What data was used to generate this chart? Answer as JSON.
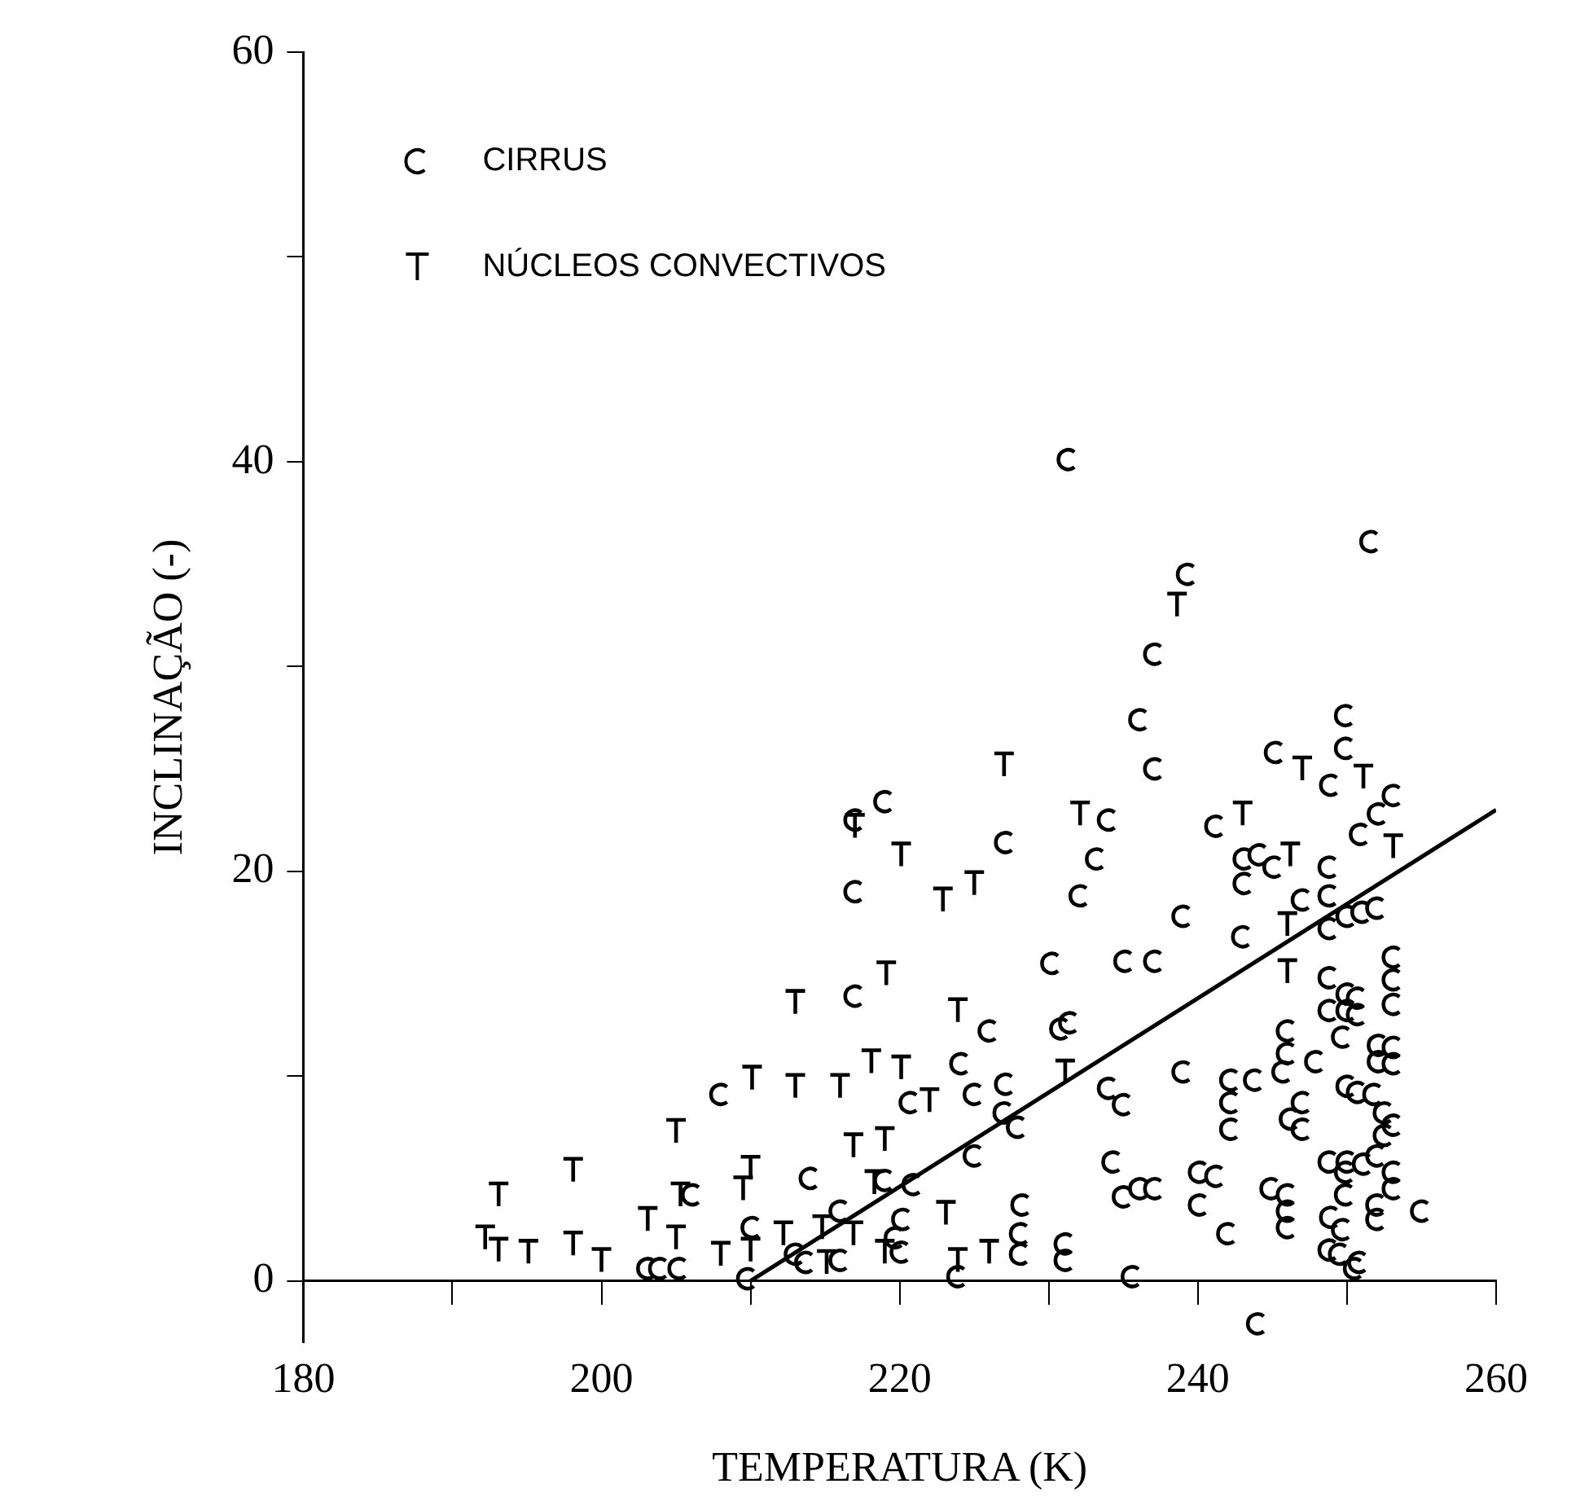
{
  "chart_data": {
    "type": "scatter",
    "xlabel": "TEMPERATURA (K)",
    "ylabel": "INCLINAÇÃO (-)",
    "xlim": [
      180,
      260
    ],
    "xticks": [
      180,
      {
        "value": 190,
        "label": null
      },
      200,
      {
        "value": 210,
        "label": null
      },
      220,
      {
        "value": 230,
        "label": null
      },
      240,
      {
        "value": 250,
        "label": null
      },
      260
    ],
    "ylim": [
      -3,
      60
    ],
    "yticks": [
      0,
      {
        "value": 10,
        "label": null
      },
      20,
      {
        "value": 30,
        "label": null
      },
      40,
      {
        "value": 50,
        "label": null
      },
      60
    ],
    "grid": false,
    "legend": "top left",
    "series": [
      {
        "name": "CIRRUS",
        "color": "#000000",
        "x": [
          208.0,
          206.1,
          210.1,
          209.8,
          203.1,
          203.9,
          205.2,
          219.0,
          217.0,
          217.0,
          227.1,
          234.0,
          233.2,
          232.1,
          230.2,
          235.1,
          237.1,
          236.1,
          217.0,
          226.0,
          231.4,
          230.8,
          224.1,
          225.0,
          227.1,
          227.0,
          227.9,
          234.0,
          235.0,
          234.3,
          235.0,
          236.1,
          225.0,
          214.0,
          219.0,
          220.9,
          220.2,
          216.0,
          219.7,
          220.1,
          228.2,
          228.1,
          228.1,
          231.1,
          231.1,
          216.0,
          213.7,
          213.0,
          223.9,
          235.6,
          220.7,
          237.1,
          237.1,
          245.2,
          249.9,
          249.9,
          248.9,
          241.2,
          243.1,
          244.1,
          243.1,
          245.1,
          239.0,
          243.0,
          247.0,
          248.8,
          248.8,
          248.8,
          248.8,
          248.8,
          246.0,
          246.0,
          247.9,
          239.0,
          242.2,
          242.2,
          242.2,
          243.8,
          245.7,
          246.2,
          247.0,
          247.0,
          240.1,
          241.2,
          240.1,
          242.0,
          244.9,
          246.0,
          246.0,
          246.0,
          237.1,
          248.8,
          248.9,
          248.8,
          250.5,
          244.0,
          249.9,
          249.9,
          231.3,
          251.6,
          239.3,
          253.1,
          252.1,
          250.9,
          252.0,
          251.0,
          250.0,
          253.1,
          253.1,
          253.1,
          253.1,
          253.1,
          252.1,
          252.1,
          250.0,
          250.0,
          250.7,
          250.7,
          249.7,
          250.0,
          250.7,
          251.8,
          252.5,
          252.5,
          253.1,
          250.0,
          251.1,
          252.0,
          253.1,
          253.1,
          252.0,
          252.0,
          255.0,
          249.7,
          250.8,
          249.5
        ],
        "values": [
          9.1,
          4.2,
          2.6,
          0.1,
          0.6,
          0.6,
          0.6,
          23.4,
          22.5,
          19.0,
          21.4,
          22.5,
          20.6,
          18.8,
          15.5,
          15.6,
          15.6,
          27.4,
          13.9,
          12.2,
          12.6,
          12.3,
          10.6,
          9.1,
          9.6,
          8.2,
          7.5,
          9.4,
          8.6,
          5.8,
          4.1,
          4.5,
          6.1,
          5.0,
          4.9,
          4.7,
          3.0,
          3.4,
          2.1,
          1.4,
          3.7,
          2.3,
          1.3,
          1.8,
          1.0,
          1.0,
          0.9,
          1.3,
          0.2,
          0.2,
          8.7,
          30.6,
          25.0,
          25.8,
          27.6,
          26.0,
          24.2,
          22.2,
          20.6,
          20.8,
          19.4,
          20.2,
          17.8,
          16.8,
          18.6,
          20.2,
          18.8,
          17.2,
          14.8,
          13.2,
          12.2,
          11.1,
          10.7,
          10.2,
          9.8,
          8.7,
          7.4,
          9.8,
          10.2,
          7.9,
          7.4,
          8.7,
          5.3,
          5.1,
          3.7,
          2.3,
          4.5,
          4.2,
          3.4,
          2.6,
          4.5,
          5.8,
          3.1,
          1.5,
          0.6,
          -2.1,
          5.3,
          4.2,
          40.1,
          36.1,
          34.5,
          23.7,
          22.8,
          21.8,
          18.2,
          18.0,
          17.8,
          15.8,
          14.7,
          13.5,
          11.4,
          10.6,
          11.5,
          10.7,
          14.0,
          13.2,
          13.8,
          13.0,
          11.9,
          9.5,
          9.2,
          9.1,
          8.2,
          7.1,
          7.6,
          5.8,
          5.7,
          6.1,
          5.3,
          4.5,
          3.7,
          3.0,
          3.4,
          2.5,
          0.9,
          1.3
        ]
      },
      {
        "name": "NÚCLEOS CONVECTIVOS",
        "color": "#000000",
        "x": [
          193.1,
          198.1,
          192.2,
          193.1,
          195.1,
          198.1,
          200.0,
          203.1,
          205.0,
          205.0,
          205.3,
          208.0,
          210.0,
          209.5,
          210.1,
          227.0,
          220.1,
          217.0,
          222.9,
          225.0,
          232.1,
          213.0,
          219.1,
          223.9,
          213.0,
          216.0,
          218.1,
          220.1,
          222.0,
          231.1,
          216.9,
          219.0,
          218.3,
          223.1,
          214.8,
          216.9,
          219.0,
          212.2,
          210.0,
          223.9,
          226.0,
          215.1,
          247.0,
          251.1,
          243.0,
          246.2,
          246.0,
          246.0,
          238.6,
          253.1
        ],
        "values": [
          4.2,
          5.4,
          2.1,
          1.5,
          1.4,
          1.8,
          1.0,
          3.0,
          7.3,
          2.1,
          4.2,
          1.3,
          5.5,
          4.5,
          9.9,
          25.2,
          20.8,
          22.2,
          18.6,
          19.4,
          22.8,
          13.6,
          15.0,
          13.2,
          9.5,
          9.5,
          10.7,
          10.4,
          8.8,
          10.2,
          6.6,
          6.9,
          4.8,
          3.3,
          2.6,
          2.3,
          1.4,
          2.3,
          1.5,
          1.0,
          1.4,
          0.9,
          25.0,
          24.6,
          22.8,
          20.8,
          17.4,
          15.1,
          33.0,
          21.2
        ]
      },
      {
        "type": "line",
        "color": "#000000",
        "marker": "none",
        "line_style": "solid",
        "x": [
          210,
          260
        ],
        "values": [
          0,
          23
        ]
      }
    ]
  }
}
